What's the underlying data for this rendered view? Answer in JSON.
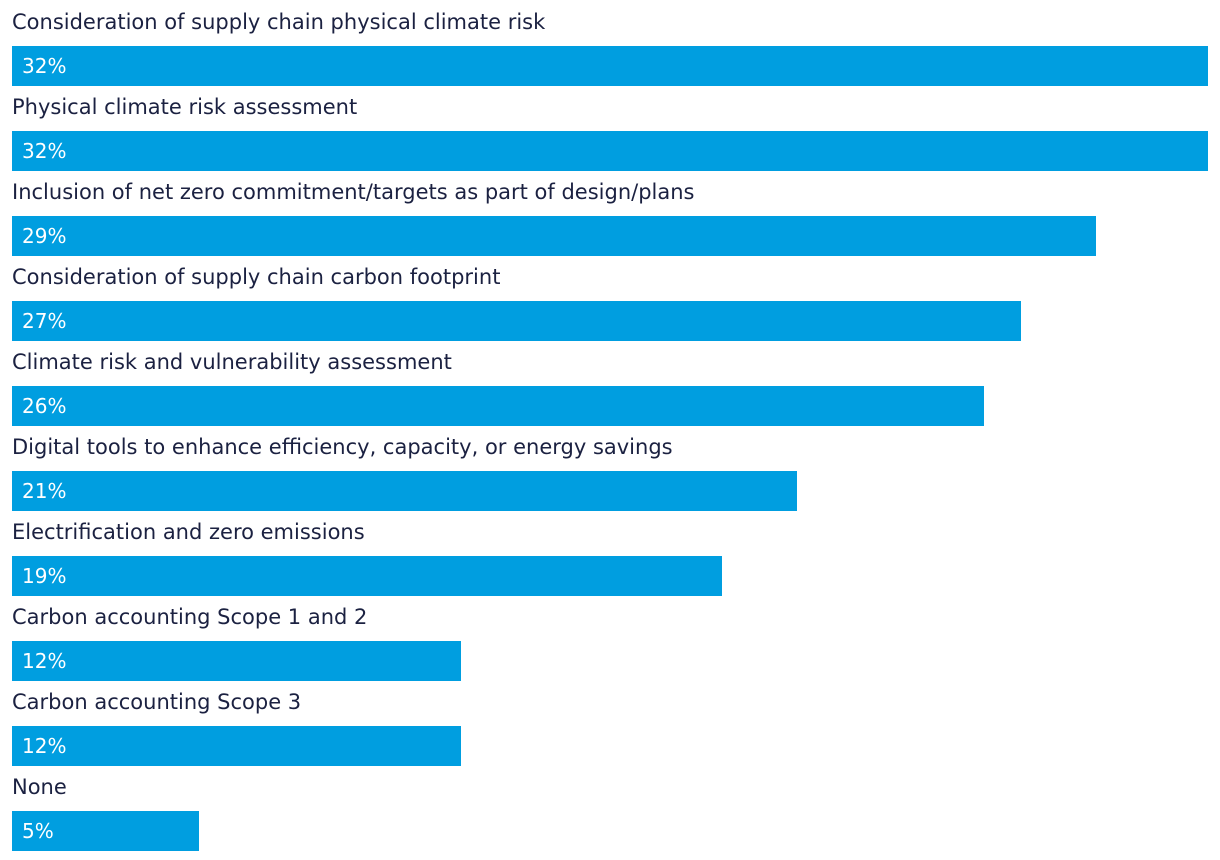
{
  "colors": {
    "bar": "#009ee0",
    "label_text": "#1b2141",
    "value_text": "#ffffff",
    "background": "#ffffff"
  },
  "chart_data": {
    "type": "bar",
    "orientation": "horizontal",
    "title": "",
    "xlabel": "",
    "ylabel": "",
    "xlim": [
      0,
      32
    ],
    "grid": false,
    "legend": "none",
    "value_suffix": "%",
    "categories": [
      "Consideration of supply chain physical climate risk",
      "Physical climate risk assessment",
      "Inclusion of net zero commitment/targets as part of design/plans",
      "Consideration of supply chain carbon footprint",
      "Climate risk and vulnerability assessment",
      "Digital tools to enhance efficiency, capacity, or energy savings",
      "Electrification and zero emissions",
      "Carbon accounting Scope 1 and 2",
      "Carbon accounting Scope 3",
      "None"
    ],
    "values": [
      32,
      32,
      29,
      27,
      26,
      21,
      19,
      12,
      12,
      5
    ],
    "value_labels": [
      "32%",
      "32%",
      "29%",
      "27%",
      "26%",
      "21%",
      "19%",
      "12%",
      "12%",
      "5%"
    ]
  }
}
